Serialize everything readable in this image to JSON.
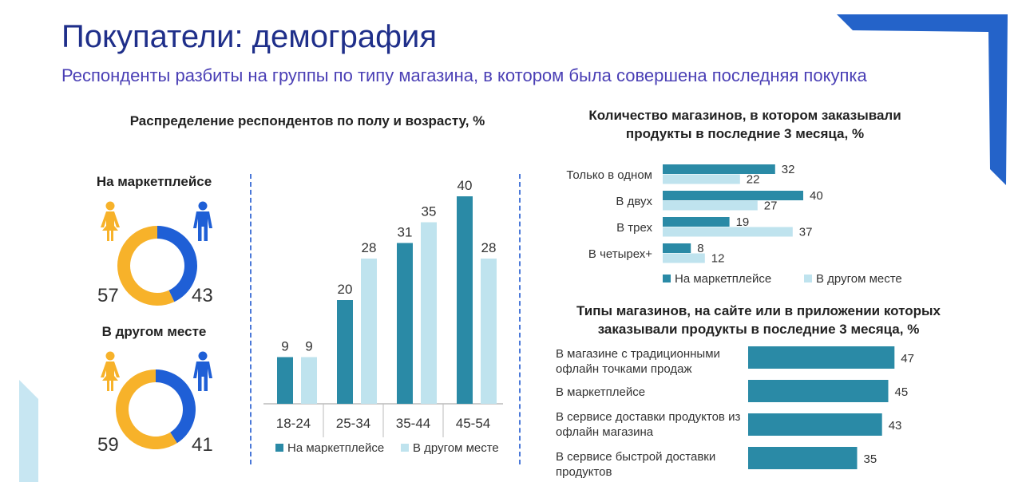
{
  "header": {
    "title": "Покупатели: демография",
    "subtitle": "Респонденты разбиты на группы по типу магазина, в котором была совершена последняя покупка"
  },
  "colors": {
    "primary": "#2a8aa6",
    "secondary": "#bfe3ee",
    "donut_female": "#f7b22a",
    "donut_male": "#1f5fd6",
    "deco_blue": "#2463c9",
    "deco_light": "#c7e6f2"
  },
  "left_panel": {
    "title": "Распределение респондентов по полу и возрасту, %",
    "donuts": [
      {
        "label": "На маркетплейсе",
        "female": 57,
        "male": 43,
        "female_text": "57",
        "male_text": "43",
        "female_icon": "female-icon",
        "male_icon": "male-icon"
      },
      {
        "label": "В другом месте",
        "female": 59,
        "male": 41,
        "female_text": "59",
        "male_text": "41",
        "female_icon": "female-icon",
        "male_icon": "male-icon"
      }
    ]
  },
  "chart_data": [
    {
      "id": "age",
      "type": "bar",
      "categories": [
        "18-24",
        "25-34",
        "35-44",
        "45-54"
      ],
      "series": [
        {
          "name": "На маркетплейсе",
          "values": [
            9,
            20,
            31,
            40
          ]
        },
        {
          "name": "В другом месте",
          "values": [
            9,
            28,
            35,
            28
          ]
        }
      ],
      "ylim": [
        0,
        45
      ]
    },
    {
      "id": "stores_count",
      "type": "bar",
      "orientation": "horizontal",
      "title": "Количество магазинов, в котором заказывали продукты в последние 3 месяца, %",
      "categories": [
        "Только в одном",
        "В двух",
        "В трех",
        "В четырех+"
      ],
      "series": [
        {
          "name": "На маркетплейсе",
          "values": [
            32,
            40,
            19,
            8
          ]
        },
        {
          "name": "В другом месте",
          "values": [
            22,
            27,
            37,
            12
          ]
        }
      ],
      "xlim": [
        0,
        45
      ]
    },
    {
      "id": "store_types",
      "type": "bar",
      "orientation": "horizontal",
      "title": "Типы магазинов, на сайте или в приложении которых заказывали продукты в последние 3 месяца, %",
      "categories": [
        "В магазине с традиционными офлайн точками продаж",
        "В маркетплейсе",
        "В сервисе доставки продуктов из офлайн магазина",
        "В сервисе быстрой доставки продуктов"
      ],
      "values": [
        47,
        45,
        43,
        35
      ],
      "xlim": [
        0,
        50
      ]
    }
  ]
}
